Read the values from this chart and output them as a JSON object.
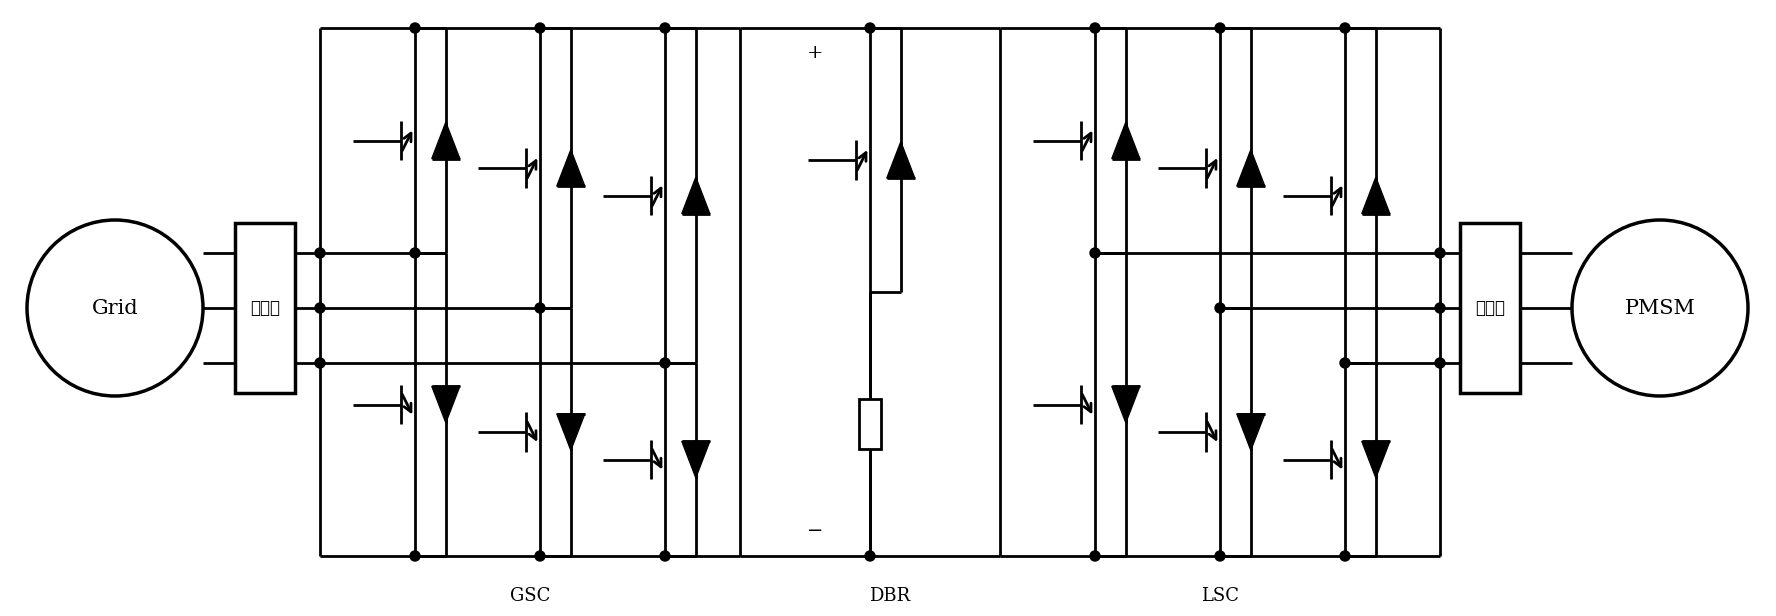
{
  "bg_color": "#ffffff",
  "line_color": "#000000",
  "lw": 2.0,
  "lw_thick": 2.5,
  "figsize": [
    17.76,
    6.16
  ],
  "dpi": 100,
  "labels": {
    "grid": "Grid",
    "pmsm": "PMSM",
    "filter": "滤波器",
    "gsc": "GSC",
    "dbr": "DBR",
    "lsc": "LSC"
  }
}
